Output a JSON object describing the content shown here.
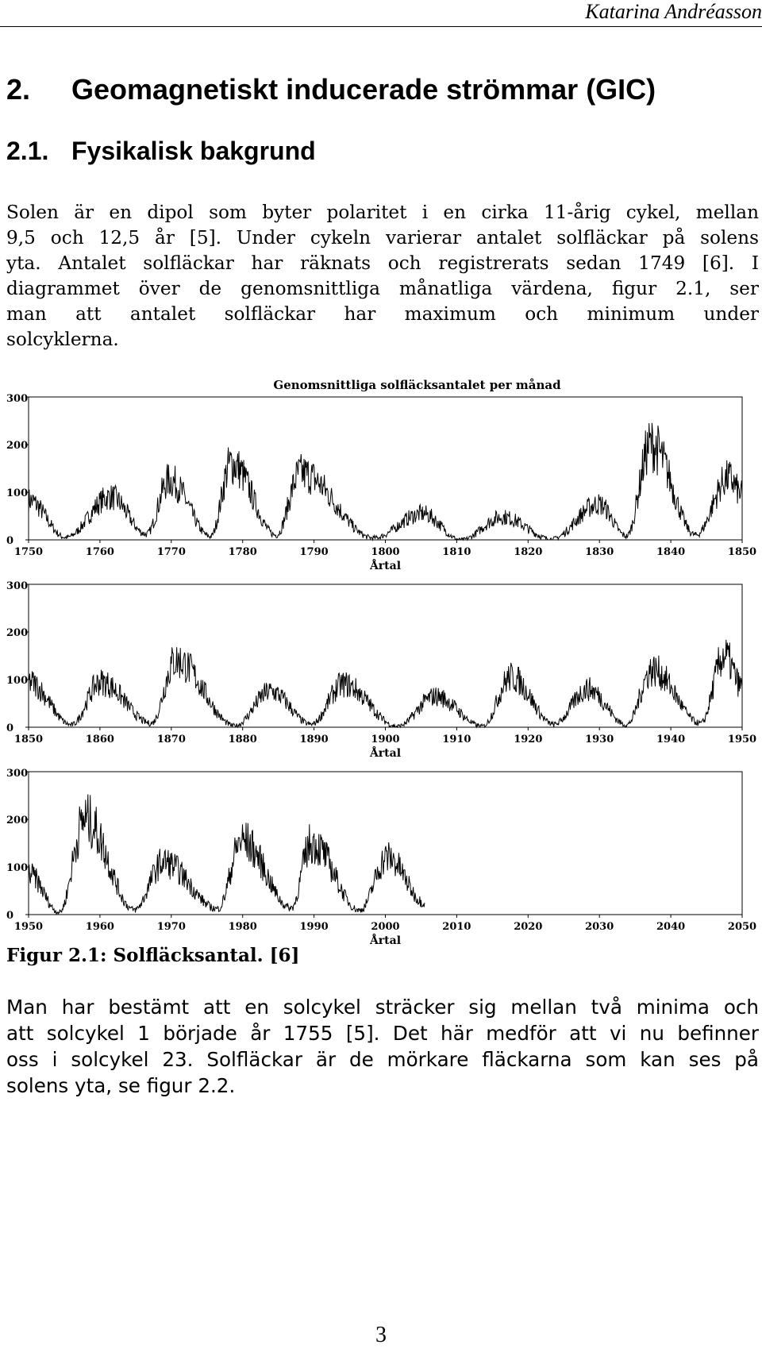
{
  "running_head": "Katarina Andréasson",
  "section": {
    "number": "2.",
    "title": "Geomagnetiskt inducerade strömmar (GIC)"
  },
  "subsection": {
    "number": "2.1.",
    "title": "Fysikalisk bakgrund"
  },
  "paragraph1": [
    "Solen är en dipol som byter polaritet i en cirka 11-årig cykel, mellan",
    "9,5 och 12,5 år [5]. Under cykeln varierar antalet solfläckar på solens",
    "yta. Antalet solfläckar har räknats och registrerats sedan 1749 [6]. I",
    "diagrammet över de genomsnittliga månatliga värdena, figur 2.1, ser",
    "man att antalet solfläckar har maximum och minimum under",
    "solcyklerna."
  ],
  "figure_caption": "Figur 2.1: Solfläcksantal. [6]",
  "paragraph2": [
    "Man har bestämt att en solcykel sträcker sig mellan två minima och",
    "att solcykel 1 började år 1755 [5]. Det här medför att vi nu befinner",
    "oss i solcykel 23. Solfläckar är de mörkare fläckarna som kan ses på",
    "solens yta, se figur 2.2."
  ],
  "page_number": "3",
  "chart_data": [
    {
      "type": "line",
      "title": "Genomsnittliga solfläcksantalet per månad",
      "xlabel": "Årtal",
      "ylabel": "",
      "xlim": [
        1750,
        1850
      ],
      "ylim": [
        0,
        300
      ],
      "x_ticks": [
        "1750",
        "1760",
        "1770",
        "1780",
        "1790",
        "1800",
        "1810",
        "1820",
        "1830",
        "1840",
        "1850"
      ],
      "y_ticks": [
        "0",
        "100",
        "200",
        "300"
      ],
      "series": [
        {
          "x": [
            1750,
            1755.2,
            1761.5,
            1766.5,
            1769.7,
            1775.5,
            1778.4,
            1784.7,
            1788.1,
            1798.3,
            1805.2,
            1810.6,
            1816.4,
            1823.3,
            1829.9,
            1833.8,
            1837.2,
            1843.5,
            1848.1,
            1850
          ],
          "y": [
            83,
            5,
            90,
            12,
            125,
            7,
            160,
            10,
            140,
            4,
            55,
            0,
            48,
            2,
            75,
            8,
            200,
            10,
            130,
            95
          ]
        }
      ]
    },
    {
      "type": "line",
      "title": "",
      "xlabel": "Årtal",
      "ylabel": "",
      "xlim": [
        1850,
        1950
      ],
      "ylim": [
        0,
        300
      ],
      "x_ticks": [
        "1850",
        "1860",
        "1870",
        "1880",
        "1890",
        "1900",
        "1910",
        "1920",
        "1930",
        "1940",
        "1950"
      ],
      "y_ticks": [
        "0",
        "100",
        "200",
        "300"
      ],
      "series": [
        {
          "x": [
            1850,
            1856,
            1860.1,
            1867.2,
            1870.6,
            1878.9,
            1883.9,
            1889.6,
            1894.1,
            1901.7,
            1907,
            1913.6,
            1917.6,
            1923.6,
            1928.4,
            1933.8,
            1937.4,
            1944.2,
            1947.5,
            1950
          ],
          "y": [
            95,
            5,
            95,
            8,
            140,
            3,
            75,
            6,
            90,
            2,
            65,
            2,
            105,
            6,
            80,
            5,
            120,
            8,
            150,
            85
          ]
        }
      ]
    },
    {
      "type": "line",
      "title": "",
      "xlabel": "Årtal",
      "ylabel": "",
      "xlim": [
        1950,
        2050
      ],
      "ylim": [
        0,
        300
      ],
      "x_ticks": [
        "1950",
        "1960",
        "1970",
        "1980",
        "1990",
        "2000",
        "2010",
        "2020",
        "2030",
        "2040",
        "2050"
      ],
      "y_ticks": [
        "0",
        "100",
        "200",
        "300"
      ],
      "series": [
        {
          "x": [
            1950,
            1954.3,
            1957.9,
            1964.8,
            1968.9,
            1976.5,
            1979.9,
            1986.8,
            1989.6,
            1996.4,
            2000.3,
            2005.5
          ],
          "y": [
            85,
            5,
            200,
            10,
            110,
            12,
            155,
            14,
            150,
            9,
            120,
            25
          ]
        }
      ]
    }
  ]
}
